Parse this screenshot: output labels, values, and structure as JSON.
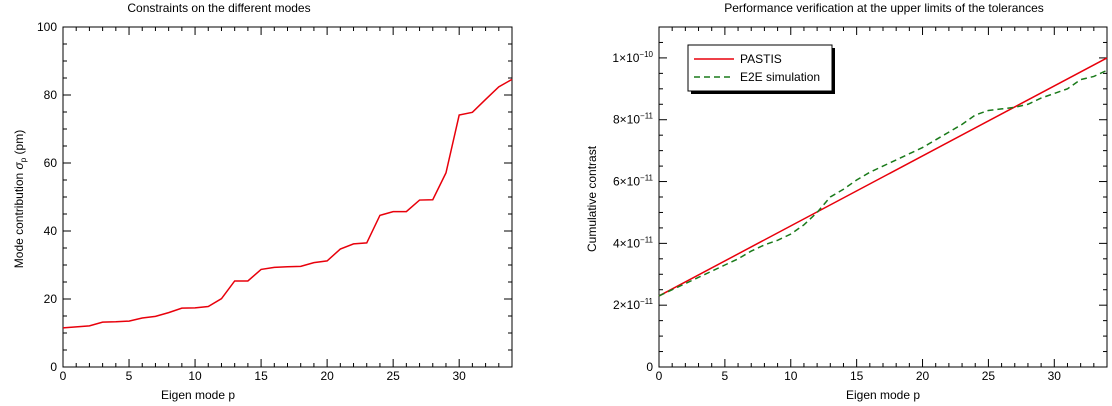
{
  "chart_data": [
    {
      "type": "line",
      "title": "Constraints on the different modes",
      "xlabel": "Eigen mode p",
      "ylabel_main": "Mode contribution ",
      "ylabel_sym": "σ",
      "ylabel_sub": "p",
      "ylabel_unit": " (pm)",
      "xlim": [
        0,
        34
      ],
      "ylim": [
        0,
        100
      ],
      "xticks": [
        0,
        5,
        10,
        15,
        20,
        25,
        30
      ],
      "yticks": [
        0,
        20,
        40,
        60,
        80,
        100
      ],
      "grid": false,
      "series": [
        {
          "color": "#e8000b",
          "x": [
            0,
            1,
            2,
            3,
            4,
            5,
            6,
            7,
            8,
            9,
            10,
            11,
            12,
            13,
            14,
            15,
            16,
            17,
            18,
            19,
            20,
            21,
            22,
            23,
            24,
            25,
            26,
            27,
            28,
            29,
            30,
            31,
            32,
            33,
            34
          ],
          "y": [
            11.5,
            11.8,
            12.1,
            13.2,
            13.3,
            13.5,
            14.4,
            14.9,
            16.0,
            17.3,
            17.4,
            17.8,
            20.1,
            25.3,
            25.3,
            28.7,
            29.3,
            29.5,
            29.6,
            30.7,
            31.2,
            34.7,
            36.2,
            36.5,
            44.6,
            45.7,
            45.7,
            49.1,
            49.2,
            57.1,
            74.1,
            74.9,
            78.7,
            82.4,
            84.6
          ]
        }
      ]
    },
    {
      "type": "line",
      "title": "Performance verification at the upper limits of the tolerances",
      "xlabel": "Eigen mode p",
      "ylabel": "Cumulative contrast",
      "xlim": [
        0,
        34
      ],
      "ylim": [
        0,
        1.1e-10
      ],
      "xticks": [
        0,
        5,
        10,
        15,
        20,
        25,
        30
      ],
      "yticks": [
        {
          "value": 0,
          "mant": "0",
          "exp": ""
        },
        {
          "value": 2e-11,
          "mant": "2×10",
          "exp": "−11"
        },
        {
          "value": 4e-11,
          "mant": "4×10",
          "exp": "−11"
        },
        {
          "value": 6e-11,
          "mant": "6×10",
          "exp": "−11"
        },
        {
          "value": 8e-11,
          "mant": "8×10",
          "exp": "−11"
        },
        {
          "value": 1e-10,
          "mant": "1×10",
          "exp": "−10"
        }
      ],
      "grid": false,
      "legend_position": "top-left",
      "series": [
        {
          "name": "PASTIS",
          "color": "#e8000b",
          "dash": "solid",
          "x": [
            0,
            34
          ],
          "y": [
            2.3e-11,
            1e-10
          ]
        },
        {
          "name": "E2E simulation",
          "color": "#1a7a1a",
          "dash": "dashed",
          "x": [
            0,
            1,
            2,
            3,
            4,
            5,
            6,
            7,
            8,
            9,
            10,
            11,
            12,
            13,
            14,
            15,
            16,
            17,
            18,
            19,
            20,
            21,
            22,
            23,
            24,
            25,
            26,
            27,
            28,
            29,
            30,
            31,
            32,
            33,
            34
          ],
          "y": [
            2.3e-11,
            2.5e-11,
            2.7e-11,
            2.9e-11,
            3.1e-11,
            3.3e-11,
            3.5e-11,
            3.75e-11,
            3.95e-11,
            4.1e-11,
            4.3e-11,
            4.6e-11,
            5e-11,
            5.5e-11,
            5.75e-11,
            6.05e-11,
            6.3e-11,
            6.5e-11,
            6.7e-11,
            6.9e-11,
            7.1e-11,
            7.35e-11,
            7.6e-11,
            7.85e-11,
            8.15e-11,
            8.3e-11,
            8.35e-11,
            8.4e-11,
            8.5e-11,
            8.7e-11,
            8.85e-11,
            9e-11,
            9.3e-11,
            9.4e-11,
            9.6e-11
          ]
        }
      ]
    }
  ]
}
